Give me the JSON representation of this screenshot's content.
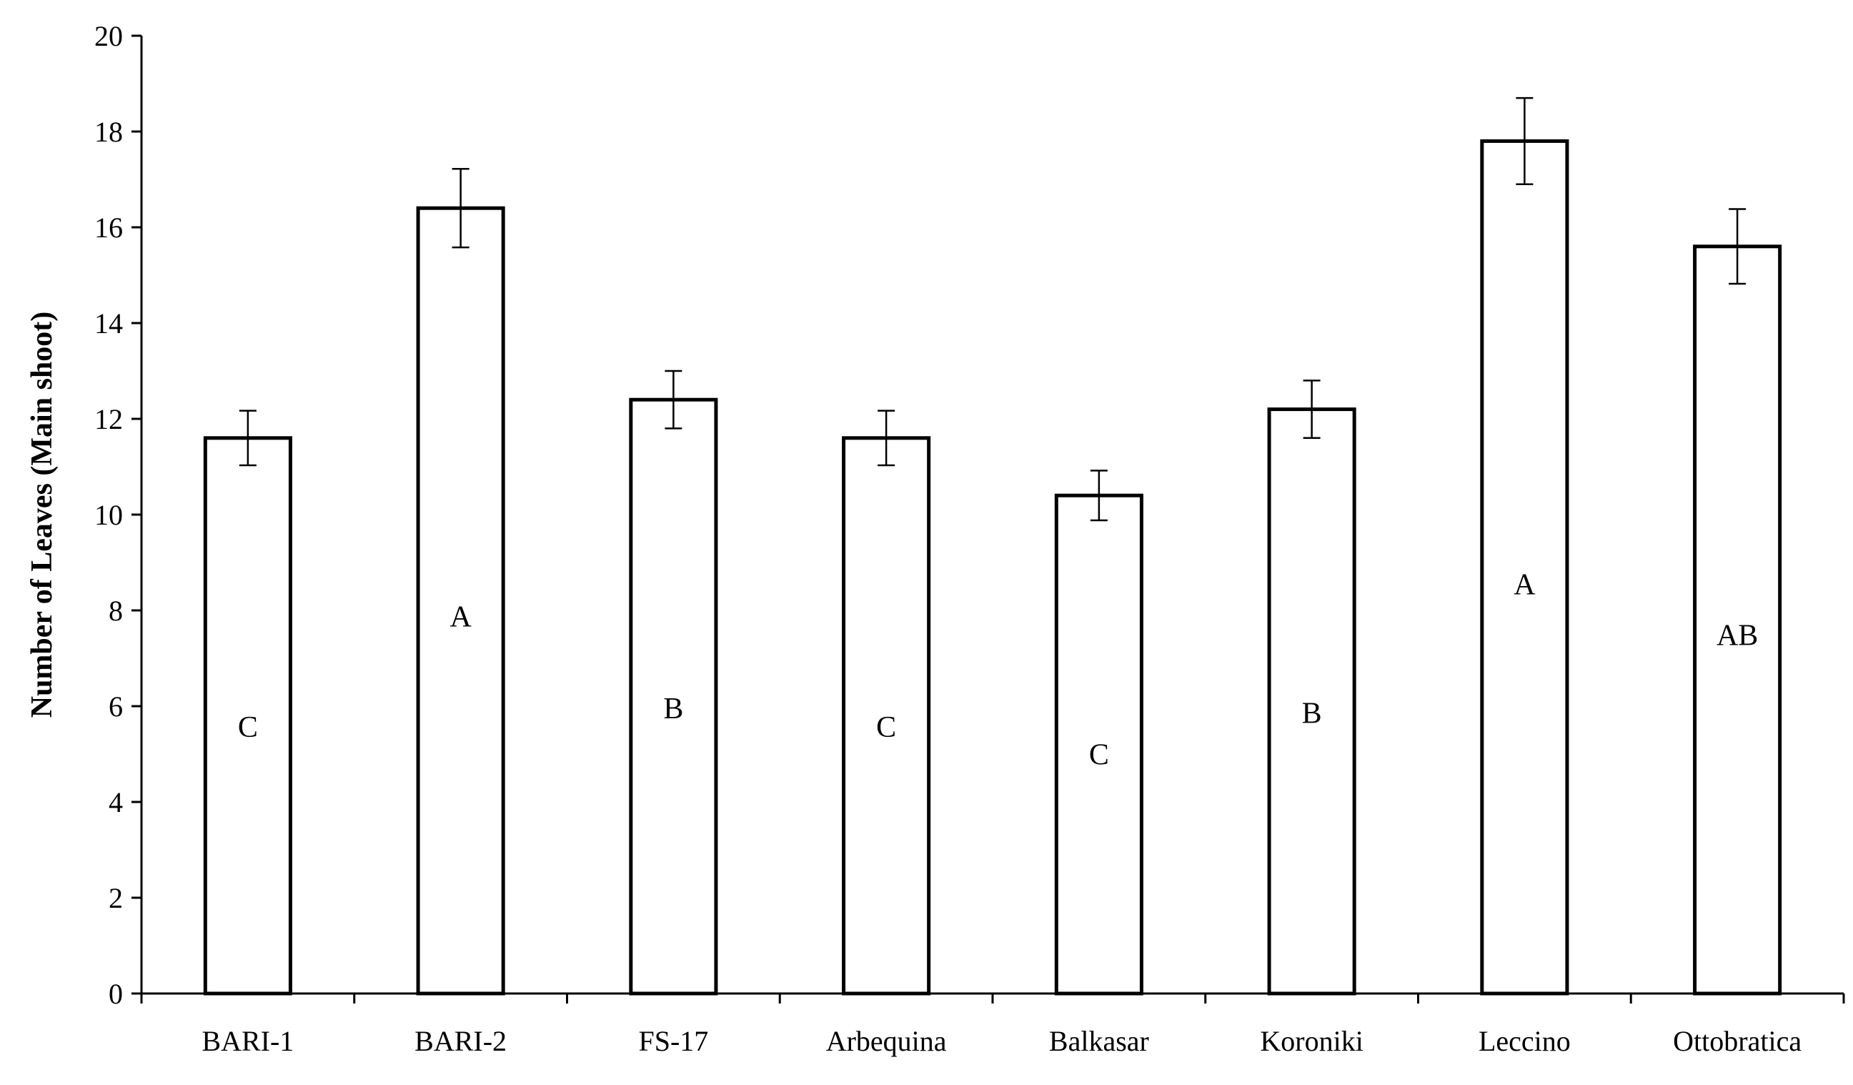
{
  "chart_data": {
    "type": "bar",
    "title": "",
    "xlabel": "",
    "ylabel": "Number  of Leaves (Main shoot)",
    "ylim": [
      0,
      20
    ],
    "yticks": [
      0,
      2,
      4,
      6,
      8,
      10,
      12,
      14,
      16,
      18,
      20
    ],
    "grid": false,
    "legend": "none",
    "bar_fill": "#ffffff",
    "bar_stroke": "#000000",
    "categories": [
      "BARI-1",
      "BARI-2",
      "FS-17",
      "Arbequina",
      "Balkasar",
      "Koroniki",
      "Leccino",
      "Ottobratica"
    ],
    "values": [
      11.6,
      16.4,
      12.4,
      11.6,
      10.4,
      12.2,
      17.8,
      15.6
    ],
    "error": [
      0.57,
      0.82,
      0.6,
      0.57,
      0.52,
      0.6,
      0.9,
      0.78
    ],
    "group_letters": [
      "C",
      "A",
      "B",
      "C",
      "C",
      "B",
      "A",
      "AB"
    ]
  }
}
